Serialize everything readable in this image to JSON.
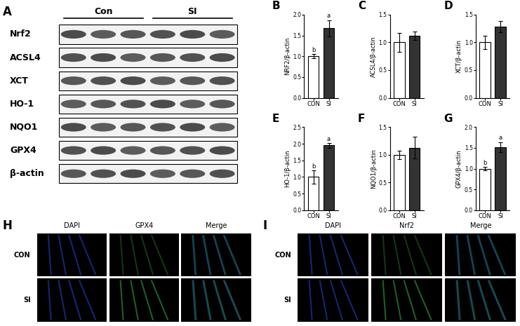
{
  "blot": {
    "panel_label": "A",
    "groups": [
      "Con",
      "SI"
    ],
    "proteins": [
      "Nrf2",
      "ACSL4",
      "XCT",
      "HO-1",
      "NQO1",
      "GPX4",
      "β-actin"
    ]
  },
  "chart_data": [
    {
      "type": "bar",
      "panel_label": "B",
      "categories": [
        "CON",
        "SI"
      ],
      "values": [
        1.0,
        1.67
      ],
      "errors": [
        0.05,
        0.2
      ],
      "colors": [
        "#ffffff",
        "#333333"
      ],
      "ylabel": "NRF2/β-actin",
      "ylim": [
        0,
        2.0
      ],
      "yticks": [
        {
          "value": 0,
          "label": "0.0"
        },
        {
          "value": 0.5,
          "label": "0.5"
        },
        {
          "value": 1,
          "label": "1.0"
        },
        {
          "value": 1.5,
          "label": "1.5"
        },
        {
          "value": 2,
          "label": "2.0"
        }
      ],
      "annotations": [
        {
          "category": "CON",
          "text": "b"
        },
        {
          "category": "SI",
          "text": "a"
        }
      ]
    },
    {
      "type": "bar",
      "panel_label": "C",
      "categories": [
        "CON",
        "SI"
      ],
      "values": [
        1.0,
        1.12
      ],
      "errors": [
        0.17,
        0.08
      ],
      "colors": [
        "#ffffff",
        "#333333"
      ],
      "ylabel": "ACSL4/β-actin",
      "ylim": [
        0,
        1.5
      ],
      "yticks": [
        {
          "value": 0,
          "label": "0.0"
        },
        {
          "value": 0.5,
          "label": "0.5"
        },
        {
          "value": 1,
          "label": "1.0"
        },
        {
          "value": 1.5,
          "label": "1.5"
        }
      ],
      "annotations": []
    },
    {
      "type": "bar",
      "panel_label": "D",
      "categories": [
        "CON",
        "SI"
      ],
      "values": [
        1.0,
        1.28
      ],
      "errors": [
        0.12,
        0.1
      ],
      "colors": [
        "#ffffff",
        "#333333"
      ],
      "ylabel": "XCT/β-actin",
      "ylim": [
        0,
        1.5
      ],
      "yticks": [
        {
          "value": 0,
          "label": "0.0"
        },
        {
          "value": 0.5,
          "label": "0.5"
        },
        {
          "value": 1,
          "label": "1.0"
        },
        {
          "value": 1.5,
          "label": "1.5"
        }
      ],
      "annotations": []
    },
    {
      "type": "bar",
      "panel_label": "E",
      "categories": [
        "CON",
        "SI"
      ],
      "values": [
        1.0,
        1.95
      ],
      "errors": [
        0.2,
        0.07
      ],
      "colors": [
        "#ffffff",
        "#333333"
      ],
      "ylabel": "HO-1/β-actin",
      "ylim": [
        0,
        2.5
      ],
      "yticks": [
        {
          "value": 0,
          "label": "0.0"
        },
        {
          "value": 0.5,
          "label": "0.5"
        },
        {
          "value": 1,
          "label": "1.0"
        },
        {
          "value": 1.5,
          "label": "1.5"
        },
        {
          "value": 2,
          "label": "2.0"
        },
        {
          "value": 2.5,
          "label": "2.5"
        }
      ],
      "annotations": [
        {
          "category": "CON",
          "text": "b"
        },
        {
          "category": "SI",
          "text": "a"
        }
      ]
    },
    {
      "type": "bar",
      "panel_label": "F",
      "categories": [
        "CON",
        "SI"
      ],
      "values": [
        1.0,
        1.13
      ],
      "errors": [
        0.08,
        0.2
      ],
      "colors": [
        "#ffffff",
        "#333333"
      ],
      "ylabel": "NQO1/β-actin",
      "ylim": [
        0,
        1.5
      ],
      "yticks": [
        {
          "value": 0,
          "label": "0.0"
        },
        {
          "value": 0.5,
          "label": "0.5"
        },
        {
          "value": 1,
          "label": "1.0"
        },
        {
          "value": 1.5,
          "label": "1.5"
        }
      ],
      "annotations": []
    },
    {
      "type": "bar",
      "panel_label": "G",
      "categories": [
        "CON",
        "SI"
      ],
      "values": [
        1.0,
        1.52
      ],
      "errors": [
        0.04,
        0.12
      ],
      "colors": [
        "#ffffff",
        "#333333"
      ],
      "ylabel": "GPX4/β-actin",
      "ylim": [
        0,
        2.0
      ],
      "yticks": [
        {
          "value": 0,
          "label": "0.0"
        },
        {
          "value": 0.5,
          "label": "0.5"
        },
        {
          "value": 1,
          "label": "1.0"
        },
        {
          "value": 1.5,
          "label": "1.5"
        },
        {
          "value": 2,
          "label": "2.0"
        }
      ],
      "annotations": [
        {
          "category": "CON",
          "text": "b"
        },
        {
          "category": "SI",
          "text": "a"
        }
      ]
    }
  ],
  "immunofluorescence": [
    {
      "panel_label": "H",
      "rows": [
        "CON",
        "SI"
      ],
      "columns": [
        "DAPI",
        "GPX4",
        "Merge"
      ]
    },
    {
      "panel_label": "I",
      "rows": [
        "CON",
        "SI"
      ],
      "columns": [
        "DAPI",
        "Nrf2",
        "Merge"
      ]
    }
  ]
}
